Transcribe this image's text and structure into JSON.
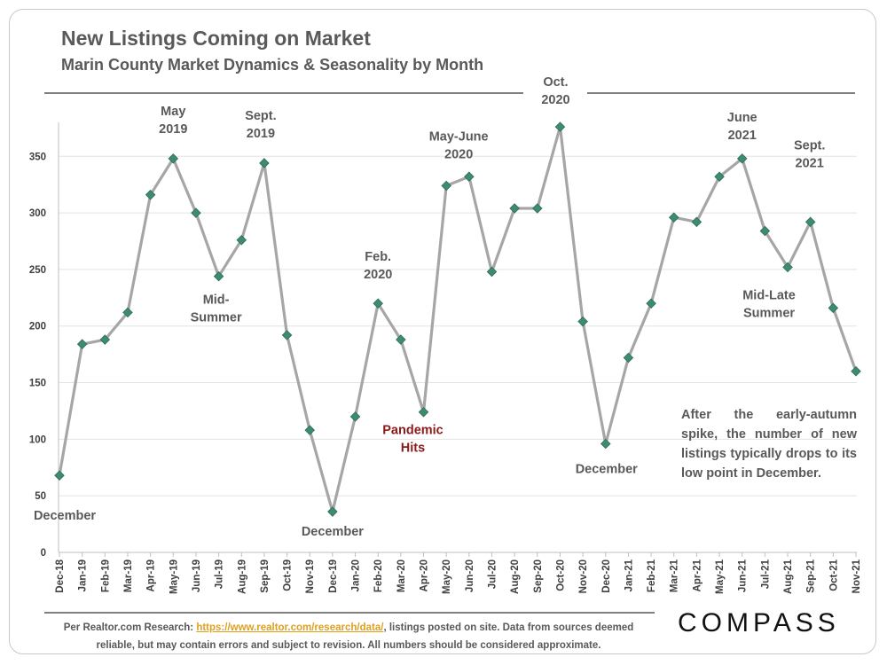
{
  "header": {
    "title": "New Listings Coming on Market",
    "subtitle": "Marin County Market Dynamics & Seasonality by Month"
  },
  "chart_data": {
    "type": "line",
    "title": "New Listings Coming on Market",
    "subtitle": "Marin County Market Dynamics & Seasonality by Month",
    "xlabel": "",
    "ylabel": "",
    "ylim": [
      0,
      380
    ],
    "yticks": [
      0,
      50,
      100,
      150,
      200,
      250,
      300,
      350
    ],
    "grid": "horizontal",
    "categories": [
      "Dec-18",
      "Jan-19",
      "Feb-19",
      "Mar-19",
      "Apr-19",
      "May-19",
      "Jun-19",
      "Jul-19",
      "Aug-19",
      "Sep-19",
      "Oct-19",
      "Nov-19",
      "Dec-19",
      "Jan-20",
      "Feb-20",
      "Mar-20",
      "Apr-20",
      "May-20",
      "Jun-20",
      "Jul-20",
      "Aug-20",
      "Sep-20",
      "Oct-20",
      "Nov-20",
      "Dec-20",
      "Jan-21",
      "Feb-21",
      "Mar-21",
      "Apr-21",
      "May-21",
      "Jun-21",
      "Jul-21",
      "Aug-21",
      "Sep-21",
      "Oct-21",
      "Nov-21"
    ],
    "series": [
      {
        "name": "New Listings",
        "values": [
          68,
          184,
          188,
          212,
          316,
          348,
          300,
          244,
          276,
          344,
          192,
          108,
          36,
          120,
          220,
          188,
          124,
          324,
          332,
          248,
          304,
          304,
          376,
          204,
          96,
          172,
          220,
          296,
          292,
          332,
          348,
          284,
          252,
          292,
          216,
          160
        ],
        "line_color": "#a6a6a6",
        "marker_color": "#3d8c6e"
      }
    ],
    "annotations": [
      {
        "index": 0,
        "lines": [
          "December"
        ],
        "style": "normal"
      },
      {
        "index": 5,
        "lines": [
          "May",
          "2019"
        ],
        "style": "normal"
      },
      {
        "index": 7,
        "lines": [
          "Mid-",
          "Summer"
        ],
        "style": "normal"
      },
      {
        "index": 9,
        "lines": [
          "Sept.",
          "2019"
        ],
        "style": "normal"
      },
      {
        "index": 12,
        "lines": [
          "December"
        ],
        "style": "normal"
      },
      {
        "index": 14,
        "lines": [
          "Feb.",
          "2020"
        ],
        "style": "normal"
      },
      {
        "index": 16,
        "lines": [
          "Pandemic",
          "Hits"
        ],
        "style": "red"
      },
      {
        "index": 17,
        "lines": [
          "May-June",
          "2020"
        ],
        "style": "normal"
      },
      {
        "index": 22,
        "lines": [
          "Oct.",
          "2020"
        ],
        "style": "normal"
      },
      {
        "index": 24,
        "lines": [
          "December"
        ],
        "style": "normal"
      },
      {
        "index": 30,
        "lines": [
          "June",
          "2021"
        ],
        "style": "normal"
      },
      {
        "index": 32,
        "lines": [
          "Mid-Late",
          "Summer"
        ],
        "style": "normal"
      },
      {
        "index": 33,
        "lines": [
          "Sept.",
          "2021"
        ],
        "style": "normal"
      }
    ]
  },
  "note": {
    "text": "After the early-autumn spike, the number of new listings typically drops to its low point in December."
  },
  "footer": {
    "source_prefix": "Per Realtor.com Research: ",
    "source_link": "https://www.realtor.com/research/data/",
    "source_suffix": ", listings posted on site. Data from sources deemed reliable, but may contain errors and subject to revision. All numbers should be considered approximate.",
    "logo": "COMPASS"
  },
  "colors": {
    "title": "#595959",
    "line": "#a6a6a6",
    "marker": "#3d8c6e",
    "pandemic": "#8b1a1a",
    "link": "#e0a020"
  }
}
